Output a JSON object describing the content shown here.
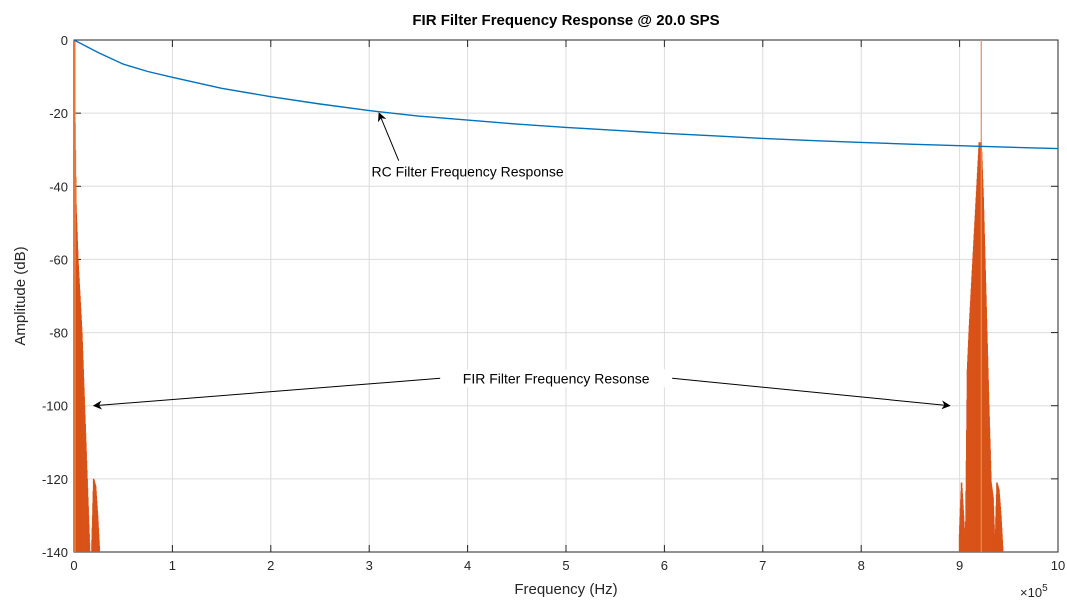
{
  "chart_data": {
    "type": "line",
    "title": "FIR Filter Frequency Response @ 20.0 SPS",
    "xlabel": "Frequency (Hz)",
    "ylabel": "Amplitude (dB)",
    "x_multiplier_label": "×10",
    "x_multiplier_exponent": "5",
    "xlim": [
      0,
      10
    ],
    "ylim": [
      -140,
      0
    ],
    "x_ticks": [
      "0",
      "1",
      "2",
      "3",
      "4",
      "5",
      "6",
      "7",
      "8",
      "9",
      "10"
    ],
    "y_ticks": [
      "0",
      "-20",
      "-40",
      "-60",
      "-80",
      "-100",
      "-120",
      "-140"
    ],
    "grid": true,
    "x_scale_note": "x values in units of 10^5 Hz",
    "colors": {
      "rc": "#0072BD",
      "fir": "#D95319",
      "fir_edge": "#F28A4A"
    },
    "series": [
      {
        "kind": "line",
        "x": [
          0,
          0.25,
          0.5,
          0.75,
          1,
          1.5,
          2,
          2.5,
          3,
          3.5,
          4,
          4.5,
          5,
          5.5,
          6,
          6.5,
          7,
          7.5,
          8,
          8.5,
          9,
          9.5,
          10
        ],
        "y": [
          0,
          -3.5,
          -6.6,
          -8.6,
          -10.2,
          -13.2,
          -15.5,
          -17.5,
          -19.3,
          -20.8,
          -21.9,
          -23.0,
          -23.9,
          -24.7,
          -25.5,
          -26.2,
          -26.9,
          -27.5,
          -28.0,
          -28.5,
          -28.9,
          -29.3,
          -29.7
        ]
      },
      {
        "kind": "spectrum",
        "x": [
          0.0,
          0.02,
          0.04,
          0.06,
          0.08,
          0.1,
          0.12,
          0.14,
          0.16,
          0.18,
          0.2,
          0.22,
          0.24,
          0.26,
          9.0,
          9.02,
          9.04,
          9.06,
          9.08,
          9.1,
          9.12,
          9.14,
          9.16,
          9.18,
          9.2,
          9.22,
          9.24,
          9.26,
          9.28,
          9.3,
          9.32,
          9.34,
          9.36,
          9.38,
          9.4,
          9.42,
          9.44
        ],
        "y": [
          0,
          -45,
          -60,
          -70,
          -80,
          -95,
          -110,
          -125,
          -140,
          -140,
          -120,
          -122,
          -130,
          -140,
          -135,
          -121,
          -130,
          -140,
          -90,
          -78,
          -68,
          -58,
          -48,
          -38,
          -28,
          -28,
          -43,
          -63,
          -83,
          -103,
          -121,
          -125,
          -140,
          -121,
          -123,
          -130,
          -140
        ]
      }
    ],
    "annotations": [
      {
        "text": "RC Filter Frequency Response",
        "x": 4.0,
        "y": -36,
        "arrow_to": [
          3.1,
          -20
        ]
      },
      {
        "text": "FIR Filter Frequency Resonse",
        "x": 4.9,
        "y": -92.5,
        "arrows_to": [
          [
            0.2,
            -100
          ],
          [
            8.9,
            -100
          ]
        ]
      }
    ]
  }
}
